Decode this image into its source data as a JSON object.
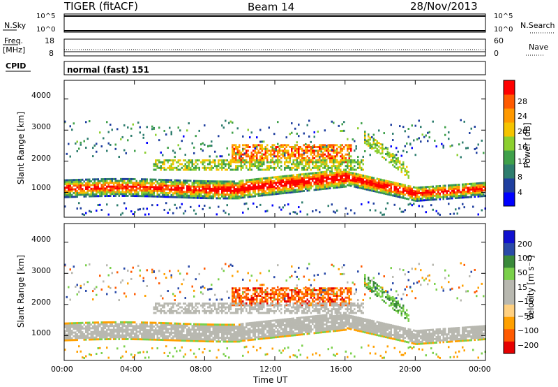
{
  "header": {
    "title": "TIGER (fitACF)",
    "beam": "Beam 14",
    "date": "28/Nov/2013"
  },
  "top_panels": {
    "nsky_label": "N.Sky",
    "nsearch_label": "N.Search",
    "freq_label": "Freq.",
    "freq_unit": "[MHz]",
    "nave_label": "Nave",
    "cpid_label": "CPID",
    "cpid_value": "normal (fast) 151",
    "noise_ticks_left": [
      "10^5",
      "10^0"
    ],
    "noise_ticks_right": [
      "10^5",
      "10^0"
    ],
    "freq_ticks_left": [
      "18",
      "8"
    ],
    "nave_ticks_right": [
      "60",
      "0"
    ]
  },
  "x_axis": {
    "label": "Time UT",
    "ticks": [
      "00:00",
      "04:00",
      "08:00",
      "12:00",
      "16:00",
      "20:00",
      "00:00"
    ]
  },
  "colors": {
    "power_bar": [
      "#0000ff",
      "#1f3f9f",
      "#2e7d6e",
      "#3fa04a",
      "#8ccf2f",
      "#f5c400",
      "#ff9900",
      "#ff5a00",
      "#ff0000"
    ],
    "velocity_bar": [
      "#e60000",
      "#ff5a00",
      "#ffa000",
      "#ffd080",
      "#b8b8b0",
      "#b8b8b0",
      "#7ad04a",
      "#3a8a3a",
      "#2a4aa8",
      "#1010d0"
    ]
  },
  "chart_data": [
    {
      "type": "heatmap",
      "panel": "power",
      "ylabel": "Slant Range [km]",
      "yticks": [
        "1000",
        "2000",
        "3000",
        "4000"
      ],
      "ylim": [
        200,
        4600
      ],
      "xlim": [
        "00:00",
        "24:00"
      ],
      "colorbar_label": "Power [dB]",
      "colorbar_ticks": [
        "4",
        "8",
        "12",
        "16",
        "20",
        "24",
        "28"
      ],
      "features": [
        {
          "name": "main band",
          "range_km_at_00": 1100,
          "range_km_at_12": 1300,
          "range_km_at_16": 1450,
          "range_km_at_20": 900,
          "peak_power_db": 28
        },
        {
          "name": "upper echoes",
          "time_start": "10:00",
          "time_end": "16:00",
          "range_km": [
            1900,
            2500
          ],
          "peak_power_db": 26
        }
      ]
    },
    {
      "type": "heatmap",
      "panel": "velocity",
      "ylabel": "Slant Range [km]",
      "yticks": [
        "1000",
        "2000",
        "3000",
        "4000"
      ],
      "ylim": [
        200,
        4600
      ],
      "xlim": [
        "00:00",
        "24:00"
      ],
      "colorbar_label": "Velocity [m s⁻¹]",
      "colorbar_ticks": [
        "200",
        "100",
        "50",
        "15",
        "−15",
        "−50",
        "−100",
        "−200"
      ],
      "features": [
        {
          "name": "ground scatter band",
          "velocity_ms": [
            -15,
            15
          ]
        },
        {
          "name": "upper echoes",
          "time_start": "10:00",
          "time_end": "16:00",
          "range_km": [
            1900,
            2600
          ],
          "velocity_ms": [
            -200,
            -50
          ]
        },
        {
          "name": "late echoes",
          "time_start": "17:00",
          "time_end": "19:30",
          "range_km": [
            1700,
            2700
          ],
          "velocity_ms": [
            15,
            100
          ]
        }
      ]
    }
  ]
}
